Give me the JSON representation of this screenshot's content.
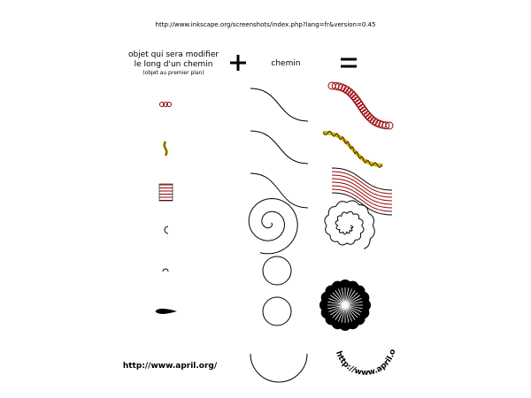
{
  "source_url": "http://www.inkscape.org/screenshots/index.php?lang=fr&version=0.45",
  "headers": {
    "object": [
      "objet qui sera modifier",
      "le long d'un chemin",
      "(objet au premier plan)"
    ],
    "path": "chemin"
  },
  "example_text": "http://www.april.org/",
  "result_text": "http://www.april.org/"
}
